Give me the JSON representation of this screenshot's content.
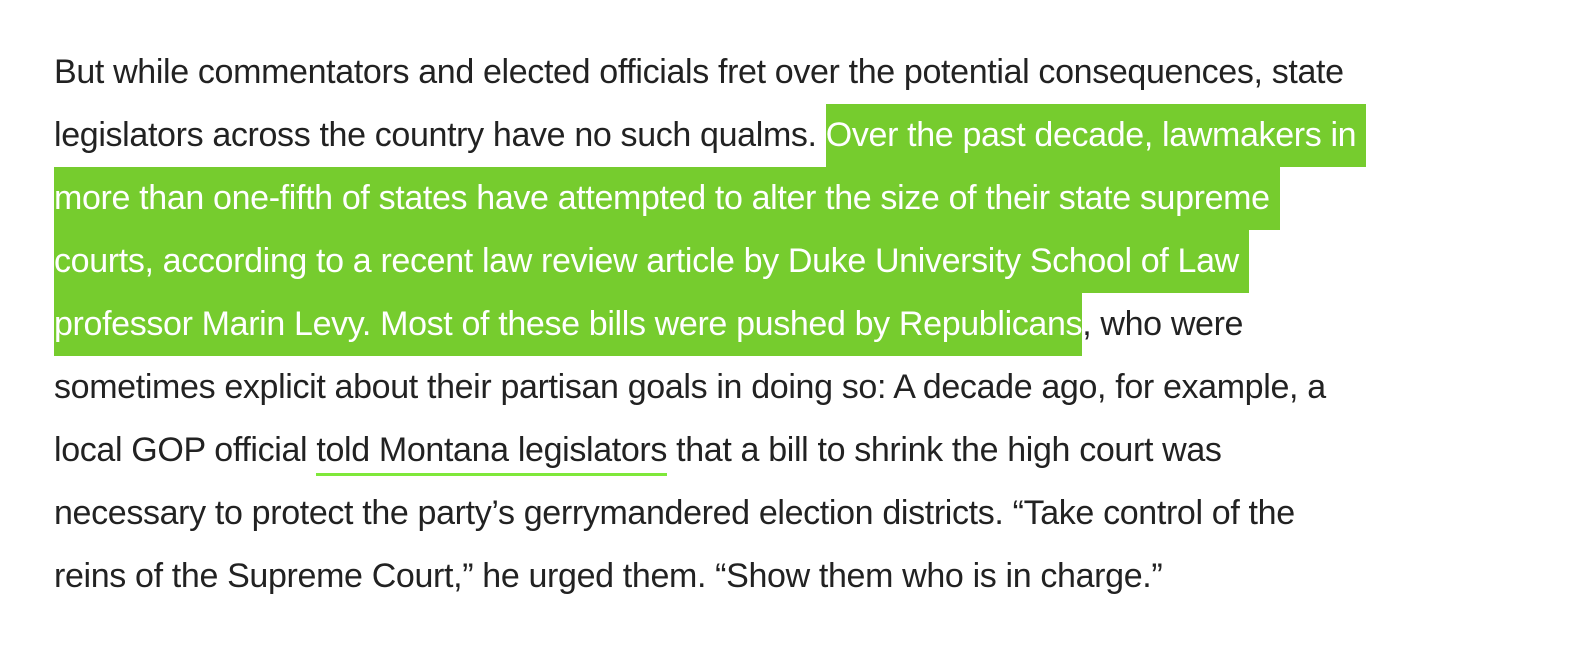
{
  "paragraph": {
    "l1": "But while commentators and elected officials fret over the potential consequences, state",
    "l2a": "legislators across the country have no such qualms. ",
    "l2b": "Over the past decade, lawmakers in",
    "l3": "more than one-fifth of states have attempted to alter the size of their state supreme",
    "l4": "courts, according to a recent law review article by Duke University School of Law",
    "l5a": "professor Marin Levy. Most of these bills were pushed by Republicans",
    "l5b": ", who were",
    "l6": "sometimes explicit about their partisan goals in doing so: A decade ago, for example, a",
    "l7a": "local GOP official ",
    "l7link": "told Montana legislators",
    "l7b": " that a bill to shrink the high court was",
    "l8": "necessary to protect the party’s gerrymandered election districts. “Take control of the",
    "l9": "reins of the Supreme Court,” he urged them. “Show them who is in charge.”"
  },
  "colors": {
    "highlight": "#76cc2e",
    "link_underline": "#7fe83a",
    "text": "#222222"
  }
}
